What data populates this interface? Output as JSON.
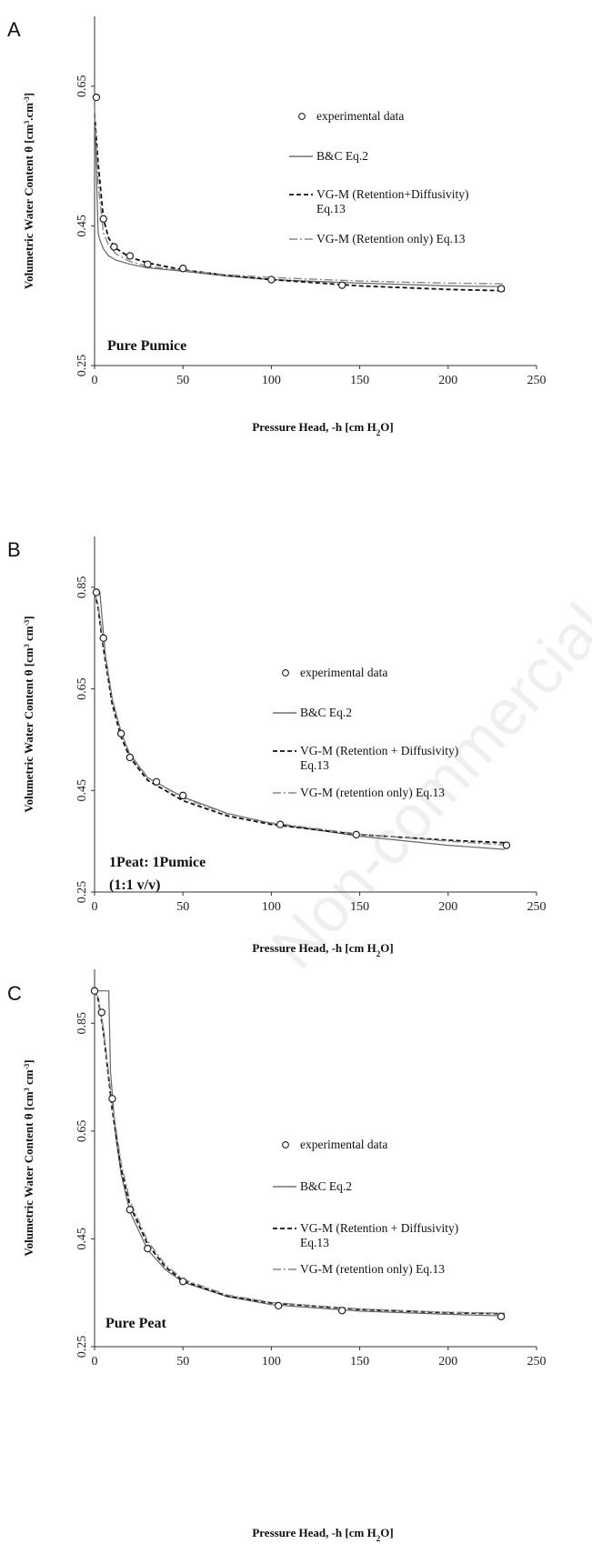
{
  "watermark": "Non-commercial",
  "chart_data": [
    {
      "panel": "A",
      "type": "line",
      "xlabel": "Pressure Head, -h [cm H2O]",
      "ylabel": "Volumetric Water Content θ [cm3.cm-3]",
      "xlim": [
        0,
        250
      ],
      "ylim": [
        0.25,
        0.75
      ],
      "xticks": [
        "0",
        "50",
        "100",
        "150",
        "200",
        "250"
      ],
      "yticks": [
        "0.25",
        "0.45",
        "0.65"
      ],
      "annotation": "Pure Pumice",
      "legend": [
        "experimental data",
        "B&C Eq.2",
        "VG-M (Retention+Diffusivity) Eq.13",
        "VG-M (Retention only) Eq.13"
      ],
      "series": [
        {
          "name": "experimental data",
          "x": [
            1,
            5,
            11,
            20,
            30,
            50,
            100,
            140,
            230
          ],
          "y": [
            0.634,
            0.46,
            0.42,
            0.407,
            0.395,
            0.389,
            0.373,
            0.365,
            0.36
          ]
        },
        {
          "name": "B&C Eq.2",
          "x": [
            0,
            2,
            3,
            5,
            8,
            12,
            20,
            30,
            50,
            75,
            100,
            150,
            200,
            232
          ],
          "y": [
            0.62,
            0.44,
            0.43,
            0.417,
            0.407,
            0.401,
            0.395,
            0.39,
            0.385,
            0.378,
            0.373,
            0.368,
            0.364,
            0.363
          ]
        },
        {
          "name": "VG-M (Retention+Diffusivity) Eq.13",
          "x": [
            0,
            2,
            5,
            8,
            12,
            20,
            30,
            50,
            75,
            100,
            150,
            200,
            232
          ],
          "y": [
            0.61,
            0.54,
            0.46,
            0.432,
            0.418,
            0.405,
            0.397,
            0.387,
            0.379,
            0.373,
            0.364,
            0.359,
            0.357
          ]
        },
        {
          "name": "VG-M (Retention only) Eq.13",
          "x": [
            0,
            2,
            5,
            8,
            12,
            20,
            30,
            50,
            75,
            100,
            150,
            200,
            232
          ],
          "y": [
            0.61,
            0.51,
            0.44,
            0.422,
            0.41,
            0.399,
            0.392,
            0.386,
            0.38,
            0.376,
            0.371,
            0.368,
            0.367
          ]
        }
      ]
    },
    {
      "panel": "B",
      "type": "line",
      "xlabel": "Pressure Head, -h [cm H2O]",
      "ylabel": "Volumetric Water Content θ [cm3 cm-3]",
      "xlim": [
        0,
        250
      ],
      "ylim": [
        0.25,
        0.95
      ],
      "xticks": [
        "0",
        "50",
        "100",
        "150",
        "200",
        "250"
      ],
      "yticks": [
        "0.25",
        "0.45",
        "0.65",
        "0.85"
      ],
      "annotation": "1Peat: 1Pumice",
      "annotation2": "(1:1 v/v)",
      "legend": [
        "experimental data",
        "B&C Eq.2",
        "VG-M (Retention + Diffusivity) Eq.13",
        "VG-M (retention only) Eq.13"
      ],
      "series": [
        {
          "name": "experimental data",
          "x": [
            1,
            5,
            15,
            20,
            35,
            50,
            105,
            148,
            233
          ],
          "y": [
            0.84,
            0.75,
            0.562,
            0.515,
            0.467,
            0.44,
            0.383,
            0.363,
            0.342
          ]
        },
        {
          "name": "B&C Eq.2",
          "x": [
            0,
            3,
            4,
            6,
            10,
            15,
            20,
            30,
            50,
            75,
            100,
            150,
            200,
            232
          ],
          "y": [
            0.84,
            0.84,
            0.8,
            0.72,
            0.63,
            0.565,
            0.52,
            0.475,
            0.437,
            0.405,
            0.385,
            0.36,
            0.342,
            0.334
          ]
        },
        {
          "name": "VG-M (Retention + Diffusivity) Eq.13",
          "x": [
            0,
            2,
            5,
            10,
            15,
            20,
            30,
            50,
            75,
            100,
            150,
            200,
            232
          ],
          "y": [
            0.84,
            0.81,
            0.73,
            0.62,
            0.555,
            0.515,
            0.47,
            0.43,
            0.4,
            0.383,
            0.363,
            0.352,
            0.347
          ]
        },
        {
          "name": "VG-M (retention only) Eq.13",
          "x": [
            0,
            2,
            5,
            10,
            15,
            20,
            30,
            50,
            75,
            100,
            150,
            200,
            232
          ],
          "y": [
            0.84,
            0.815,
            0.74,
            0.63,
            0.563,
            0.522,
            0.476,
            0.435,
            0.404,
            0.386,
            0.364,
            0.35,
            0.343
          ]
        }
      ]
    },
    {
      "panel": "C",
      "type": "line",
      "xlabel": "Pressure Head, -h [cm H2O]",
      "ylabel": "Volumetric Water Content θ [cm3 cm-3]",
      "xlim": [
        0,
        250
      ],
      "ylim": [
        0.25,
        0.95
      ],
      "xticks": [
        "0",
        "50",
        "100",
        "150",
        "200",
        "250"
      ],
      "yticks": [
        "0.25",
        "0.45",
        "0.65",
        "0.85"
      ],
      "annotation": "Pure Peat",
      "legend": [
        "experimental data",
        "B&C Eq.2",
        "VG-M (Retention + Diffusivity) Eq.13",
        "VG-M (retention only) Eq.13"
      ],
      "series": [
        {
          "name": "experimental data",
          "x": [
            0,
            4,
            10,
            20,
            30,
            50,
            104,
            140,
            230
          ],
          "y": [
            0.91,
            0.87,
            0.71,
            0.504,
            0.432,
            0.371,
            0.326,
            0.317,
            0.306
          ]
        },
        {
          "name": "B&C Eq.2",
          "x": [
            0,
            8,
            9,
            12,
            15,
            20,
            30,
            40,
            50,
            75,
            100,
            150,
            200,
            232
          ],
          "y": [
            0.91,
            0.91,
            0.76,
            0.64,
            0.57,
            0.5,
            0.43,
            0.393,
            0.37,
            0.343,
            0.328,
            0.316,
            0.31,
            0.307
          ]
        },
        {
          "name": "VG-M (Retention + Diffusivity) Eq.13",
          "x": [
            0,
            2,
            5,
            10,
            15,
            20,
            30,
            40,
            50,
            75,
            100,
            150,
            200,
            232
          ],
          "y": [
            0.91,
            0.895,
            0.835,
            0.69,
            0.58,
            0.512,
            0.44,
            0.398,
            0.372,
            0.344,
            0.331,
            0.319,
            0.313,
            0.311
          ]
        },
        {
          "name": "VG-M (retention only) Eq.13",
          "x": [
            0,
            2,
            5,
            10,
            15,
            20,
            30,
            40,
            50,
            75,
            100,
            150,
            200,
            232
          ],
          "y": [
            0.91,
            0.898,
            0.84,
            0.7,
            0.59,
            0.52,
            0.446,
            0.402,
            0.375,
            0.346,
            0.332,
            0.32,
            0.314,
            0.312
          ]
        }
      ]
    }
  ]
}
